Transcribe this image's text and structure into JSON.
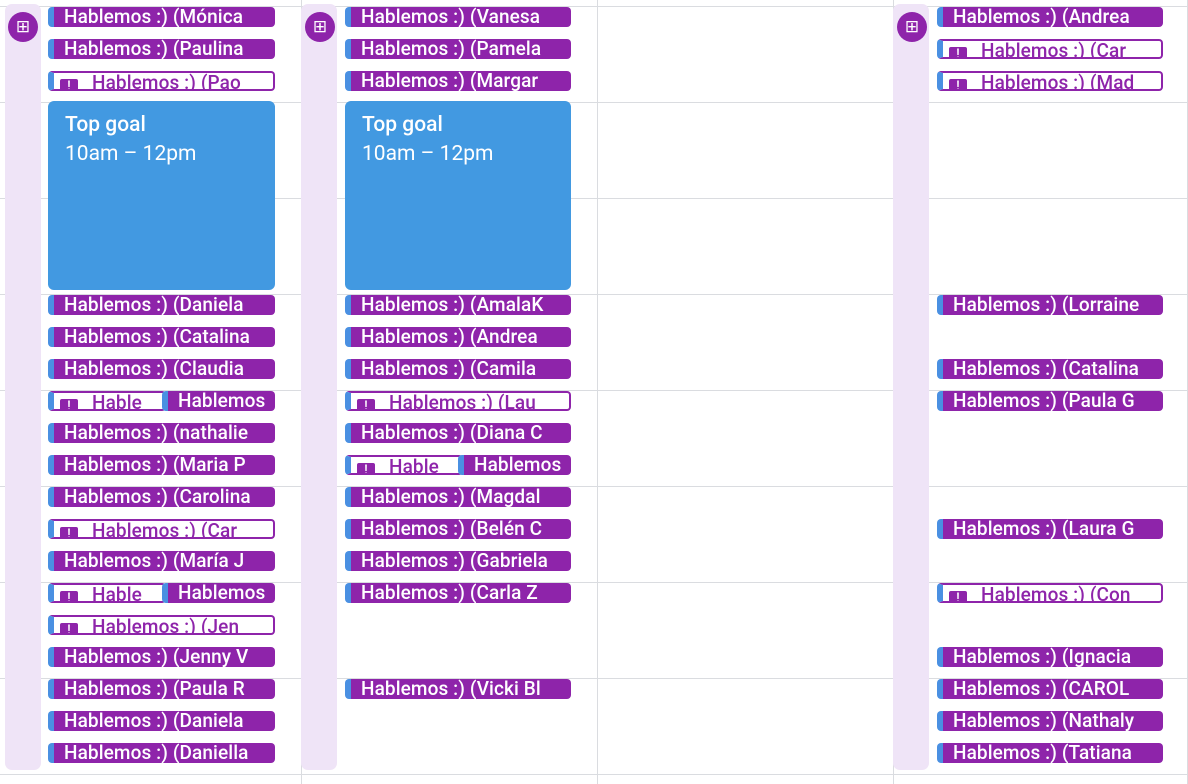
{
  "colors": {
    "purple": "#8e24aa",
    "blue": "#4299e1",
    "rail": "#efe4f7",
    "grid": "#dadce0"
  },
  "columns": [
    {
      "rail_icon": "grid-plus-icon",
      "goal": {
        "title": "Top goal",
        "time": "10am – 12pm"
      },
      "events": [
        {
          "row": 0,
          "label": "Hablemos :) (Mónica",
          "style": "solid"
        },
        {
          "row": 1,
          "label": "Hablemos :) (Paulina",
          "style": "solid"
        },
        {
          "row": 2,
          "label": "Hablemos :) (Pao",
          "style": "warn"
        },
        {
          "row": 9,
          "label": "Hablemos :) (Daniela",
          "style": "solid"
        },
        {
          "row": 10,
          "label": "Hablemos :) (Catalina",
          "style": "solid"
        },
        {
          "row": 11,
          "label": "Hablemos :) (Claudia",
          "style": "solid"
        },
        {
          "row": 12,
          "label": "Hable",
          "style": "warn",
          "half": "left"
        },
        {
          "row": 12,
          "label": "Hablemos",
          "style": "solid",
          "half": "right"
        },
        {
          "row": 13,
          "label": "Hablemos :) (nathalie",
          "style": "solid"
        },
        {
          "row": 14,
          "label": "Hablemos :) (Maria P",
          "style": "solid"
        },
        {
          "row": 15,
          "label": "Hablemos :) (Carolina",
          "style": "solid"
        },
        {
          "row": 16,
          "label": "Hablemos :) (Car",
          "style": "warn"
        },
        {
          "row": 17,
          "label": "Hablemos :) (María J",
          "style": "solid"
        },
        {
          "row": 18,
          "label": "Hable",
          "style": "warn",
          "half": "left"
        },
        {
          "row": 18,
          "label": "Hablemos",
          "style": "solid",
          "half": "right"
        },
        {
          "row": 19,
          "label": "Hablemos :) (Jen",
          "style": "warn"
        },
        {
          "row": 20,
          "label": "Hablemos :) (Jenny V",
          "style": "solid"
        },
        {
          "row": 21,
          "label": "Hablemos :) (Paula R",
          "style": "solid"
        },
        {
          "row": 22,
          "label": "Hablemos :) (Daniela",
          "style": "solid"
        },
        {
          "row": 23,
          "label": "Hablemos :) (Daniella",
          "style": "solid"
        }
      ]
    },
    {
      "rail_icon": "grid-plus-icon",
      "goal": {
        "title": "Top goal",
        "time": "10am – 12pm"
      },
      "events": [
        {
          "row": 0,
          "label": "Hablemos :) (Vanesa",
          "style": "solid"
        },
        {
          "row": 1,
          "label": "Hablemos :) (Pamela",
          "style": "solid"
        },
        {
          "row": 2,
          "label": "Hablemos :) (Margar",
          "style": "solid"
        },
        {
          "row": 9,
          "label": "Hablemos :) (AmalaK",
          "style": "solid"
        },
        {
          "row": 10,
          "label": "Hablemos :) (Andrea",
          "style": "solid"
        },
        {
          "row": 11,
          "label": "Hablemos :) (Camila",
          "style": "solid"
        },
        {
          "row": 12,
          "label": "Hablemos :) (Lau",
          "style": "warn"
        },
        {
          "row": 13,
          "label": "Hablemos :) (Diana C",
          "style": "solid"
        },
        {
          "row": 14,
          "label": "Hable",
          "style": "warn",
          "half": "left"
        },
        {
          "row": 14,
          "label": "Hablemos",
          "style": "solid",
          "half": "right"
        },
        {
          "row": 15,
          "label": "Hablemos :) (Magdal",
          "style": "solid"
        },
        {
          "row": 16,
          "label": "Hablemos :) (Belén C",
          "style": "solid"
        },
        {
          "row": 17,
          "label": "Hablemos :) (Gabriela",
          "style": "solid"
        },
        {
          "row": 18,
          "label": "Hablemos :) (Carla Z",
          "style": "solid"
        },
        {
          "row": 21,
          "label": "Hablemos :) (Vicki Bl",
          "style": "solid"
        }
      ]
    },
    {
      "rail_icon": "grid-plus-icon",
      "events": [
        {
          "row": 0,
          "label": "Hablemos :) (Andrea",
          "style": "solid"
        },
        {
          "row": 1,
          "label": "Hablemos :) (Car",
          "style": "warn"
        },
        {
          "row": 2,
          "label": "Hablemos :) (Mad",
          "style": "warn"
        },
        {
          "row": 9,
          "label": "Hablemos :) (Lorraine",
          "style": "solid"
        },
        {
          "row": 11,
          "label": "Hablemos :) (Catalina",
          "style": "solid"
        },
        {
          "row": 12,
          "label": "Hablemos :) (Paula G",
          "style": "solid"
        },
        {
          "row": 16,
          "label": "Hablemos :) (Laura G",
          "style": "solid"
        },
        {
          "row": 18,
          "label": "Hablemos :) (Con",
          "style": "warn"
        },
        {
          "row": 20,
          "label": "Hablemos :) (Ignacia",
          "style": "solid"
        },
        {
          "row": 21,
          "label": "Hablemos :) (CAROL",
          "style": "solid"
        },
        {
          "row": 22,
          "label": "Hablemos :) (Nathaly",
          "style": "solid"
        },
        {
          "row": 23,
          "label": "Hablemos :) (Tatiana",
          "style": "solid"
        }
      ]
    }
  ]
}
